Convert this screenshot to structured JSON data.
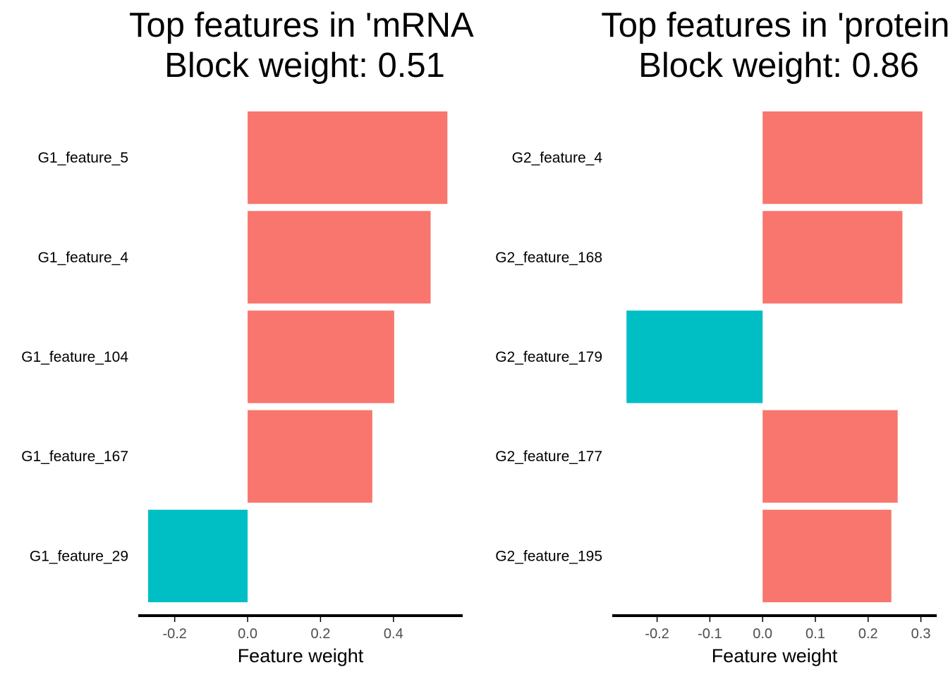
{
  "colors": {
    "positive": "#F8766D",
    "negative": "#00BFC4",
    "axis": "#000000",
    "tick_text": "#4D4D4D"
  },
  "chart_data": [
    {
      "type": "bar",
      "orientation": "horizontal",
      "title": "Top features in 'mRNA'",
      "subtitle": "Block weight: 0.51",
      "xlabel": "Feature weight",
      "ylabel": "",
      "xlim": [
        -0.3,
        0.59
      ],
      "xticks": [
        -0.2,
        0.0,
        0.2,
        0.4
      ],
      "xtick_labels": [
        "-0.2",
        "0.0",
        "0.2",
        "0.4"
      ],
      "grid": false,
      "legend": "none",
      "categories": [
        "G1_feature_5",
        "G1_feature_4",
        "G1_feature_104",
        "G1_feature_167",
        "G1_feature_29"
      ],
      "values": [
        0.548,
        0.502,
        0.402,
        0.342,
        -0.273
      ]
    },
    {
      "type": "bar",
      "orientation": "horizontal",
      "title": "Top features in 'protein'",
      "subtitle": "Block weight: 0.86",
      "xlabel": "Feature weight",
      "ylabel": "",
      "xlim": [
        -0.285,
        0.33
      ],
      "xticks": [
        -0.2,
        -0.1,
        0.0,
        0.1,
        0.2,
        0.3
      ],
      "xtick_labels": [
        "-0.2",
        "-0.1",
        "0.0",
        "0.1",
        "0.2",
        "0.3"
      ],
      "grid": false,
      "legend": "none",
      "categories": [
        "G2_feature_4",
        "G2_feature_168",
        "G2_feature_179",
        "G2_feature_177",
        "G2_feature_195"
      ],
      "values": [
        0.303,
        0.265,
        -0.258,
        0.256,
        0.244
      ]
    }
  ]
}
